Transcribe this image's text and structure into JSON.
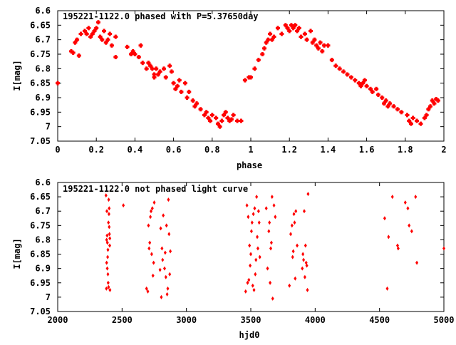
{
  "chart_data": [
    {
      "type": "scatter",
      "title": "195221-1122.0 phased with P=5.37650day",
      "xlabel": "phase",
      "ylabel": "I[mag]",
      "xlim": [
        0,
        2
      ],
      "ylim": [
        7.05,
        6.6
      ],
      "y_inverted": true,
      "xticks": [
        0,
        0.2,
        0.4,
        0.6,
        0.8,
        1,
        1.2,
        1.4,
        1.6,
        1.8,
        2
      ],
      "xtick_labels": [
        "0",
        "0.2",
        "0.4",
        "0.6",
        "0.8",
        "1",
        "1.2",
        "1.4",
        "1.6",
        "1.8",
        "2"
      ],
      "yticks": [
        6.6,
        6.65,
        6.7,
        6.75,
        6.8,
        6.85,
        6.9,
        6.95,
        7,
        7.05
      ],
      "ytick_labels": [
        "6.6",
        "6.65",
        "6.7",
        "6.75",
        "6.8",
        "6.85",
        "6.9",
        "6.95",
        "7",
        "7.05"
      ],
      "grid": false,
      "marker_color": "#ff0000",
      "marker": "cross",
      "series": [
        {
          "x": [
            0.0,
            0.07,
            0.08,
            0.09,
            0.1,
            0.11,
            0.12,
            0.14,
            0.15,
            0.16,
            0.17,
            0.18,
            0.19,
            0.2,
            0.21,
            0.22,
            0.23,
            0.24,
            0.25,
            0.26,
            0.27,
            0.28,
            0.3,
            0.3,
            0.36,
            0.38,
            0.39,
            0.4,
            0.42,
            0.43,
            0.44,
            0.46,
            0.47,
            0.48,
            0.49,
            0.5,
            0.5,
            0.51,
            0.52,
            0.53,
            0.55,
            0.56,
            0.58,
            0.59,
            0.6,
            0.61,
            0.62,
            0.63,
            0.64,
            0.66,
            0.67,
            0.68,
            0.7,
            0.71,
            0.72,
            0.74,
            0.76,
            0.77,
            0.78,
            0.79,
            0.8,
            0.82,
            0.83,
            0.84,
            0.85,
            0.86,
            0.87,
            0.88,
            0.89,
            0.9,
            0.91,
            0.93,
            0.95,
            0.97,
            0.99,
            1.0,
            1.02,
            1.04,
            1.06,
            1.07,
            1.08,
            1.09,
            1.1,
            1.11,
            1.12,
            1.14,
            1.16,
            1.18,
            1.19,
            1.2,
            1.21,
            1.22,
            1.23,
            1.24,
            1.25,
            1.26,
            1.28,
            1.29,
            1.31,
            1.32,
            1.33,
            1.34,
            1.35,
            1.36,
            1.37,
            1.38,
            1.4,
            1.42,
            1.44,
            1.46,
            1.48,
            1.5,
            1.52,
            1.54,
            1.56,
            1.57,
            1.58,
            1.59,
            1.6,
            1.62,
            1.63,
            1.65,
            1.66,
            1.68,
            1.69,
            1.7,
            1.71,
            1.72,
            1.74,
            1.76,
            1.78,
            1.81,
            1.82,
            1.83,
            1.84,
            1.86,
            1.88,
            1.9,
            1.91,
            1.92,
            1.93,
            1.94,
            1.95,
            1.96,
            1.97
          ],
          "y": [
            6.85,
            6.74,
            6.745,
            6.71,
            6.7,
            6.755,
            6.68,
            6.67,
            6.68,
            6.66,
            6.69,
            6.68,
            6.67,
            6.66,
            6.64,
            6.69,
            6.7,
            6.67,
            6.71,
            6.7,
            6.68,
            6.72,
            6.69,
            6.76,
            6.725,
            6.75,
            6.74,
            6.75,
            6.76,
            6.72,
            6.78,
            6.8,
            6.78,
            6.79,
            6.8,
            6.82,
            6.83,
            6.8,
            6.82,
            6.81,
            6.8,
            6.83,
            6.79,
            6.81,
            6.85,
            6.87,
            6.86,
            6.84,
            6.88,
            6.85,
            6.9,
            6.88,
            6.91,
            6.93,
            6.92,
            6.94,
            6.96,
            6.95,
            6.97,
            6.98,
            6.96,
            6.97,
            6.99,
            7.0,
            6.98,
            6.96,
            6.95,
            6.97,
            6.98,
            6.975,
            6.96,
            6.98,
            6.98,
            6.84,
            6.83,
            6.83,
            6.8,
            6.77,
            6.75,
            6.73,
            6.71,
            6.7,
            6.68,
            6.7,
            6.69,
            6.66,
            6.68,
            6.65,
            6.66,
            6.67,
            6.65,
            6.66,
            6.65,
            6.67,
            6.66,
            6.69,
            6.68,
            6.7,
            6.67,
            6.71,
            6.7,
            6.72,
            6.73,
            6.71,
            6.74,
            6.72,
            6.72,
            6.77,
            6.79,
            6.8,
            6.81,
            6.82,
            6.83,
            6.84,
            6.85,
            6.86,
            6.85,
            6.84,
            6.86,
            6.87,
            6.88,
            6.87,
            6.89,
            6.9,
            6.92,
            6.91,
            6.93,
            6.92,
            6.93,
            6.94,
            6.95,
            6.96,
            6.98,
            6.99,
            6.97,
            6.98,
            6.99,
            6.97,
            6.96,
            6.94,
            6.93,
            6.91,
            6.92,
            6.905,
            6.91
          ],
          "point_labels": []
        }
      ]
    },
    {
      "type": "scatter",
      "title": "195221-1122.0 not phased light curve",
      "xlabel": "hjd0",
      "ylabel": "I[mag]",
      "xlim": [
        2000,
        5000
      ],
      "ylim": [
        7.05,
        6.6
      ],
      "y_inverted": true,
      "xticks": [
        2000,
        2500,
        3000,
        3500,
        4000,
        4500,
        5000
      ],
      "xtick_labels": [
        "2000",
        "2500",
        "3000",
        "3500",
        "4000",
        "4500",
        "5000"
      ],
      "yticks": [
        6.6,
        6.65,
        6.7,
        6.75,
        6.8,
        6.85,
        6.9,
        6.95,
        7,
        7.05
      ],
      "ytick_labels": [
        "6.6",
        "6.65",
        "6.7",
        "6.75",
        "6.8",
        "6.85",
        "6.9",
        "6.95",
        "7",
        "7.05"
      ],
      "grid": false,
      "marker_color": "#ff0000",
      "marker": "diamond",
      "series": [
        {
          "x": [
            2375,
            2378,
            2380,
            2382,
            2384,
            2386,
            2388,
            2390,
            2392,
            2394,
            2396,
            2398,
            2400,
            2402,
            2404,
            2406,
            2380,
            2385,
            2390,
            2395,
            2400,
            2405,
            2510,
            2690,
            2700,
            2705,
            2710,
            2715,
            2720,
            2725,
            2730,
            2735,
            2740,
            2745,
            2750,
            2795,
            2800,
            2805,
            2810,
            2815,
            2820,
            2830,
            2835,
            2840,
            2845,
            2850,
            2855,
            2860,
            2865,
            2870,
            2875,
            3460,
            3470,
            3475,
            3480,
            3485,
            3490,
            3495,
            3500,
            3505,
            3510,
            3515,
            3520,
            3525,
            3530,
            3535,
            3540,
            3545,
            3550,
            3555,
            3560,
            3565,
            3570,
            3620,
            3630,
            3640,
            3645,
            3650,
            3655,
            3660,
            3665,
            3670,
            3680,
            3690,
            3800,
            3810,
            3820,
            3825,
            3830,
            3835,
            3840,
            3845,
            3850,
            3860,
            3900,
            3905,
            3910,
            3915,
            3920,
            3925,
            3930,
            3935,
            3940,
            3945,
            4540,
            4560,
            4570,
            4600,
            4640,
            4645,
            4700,
            4720,
            4730,
            4750,
            4780,
            4790,
            5000
          ],
          "y": [
            6.645,
            6.97,
            6.8,
            6.7,
            6.785,
            6.81,
            6.86,
            6.92,
            6.95,
            6.74,
            6.66,
            6.71,
            6.69,
            6.78,
            6.82,
            6.975,
            6.88,
            6.9,
            6.835,
            6.965,
            6.755,
            6.795,
            6.68,
            6.97,
            6.98,
            6.75,
            6.83,
            6.81,
            6.72,
            6.7,
            6.85,
            6.69,
            6.925,
            6.88,
            6.67,
            6.905,
            6.76,
            7.0,
            6.83,
            6.87,
            6.715,
            6.9,
            6.845,
            6.93,
            6.75,
            6.99,
            6.97,
            6.66,
            6.78,
            6.92,
            6.84,
            6.98,
            6.68,
            6.95,
            6.72,
            6.94,
            6.82,
            6.89,
            6.85,
            6.77,
            6.74,
            6.96,
            6.71,
            6.975,
            6.69,
            6.92,
            6.87,
            6.65,
            6.79,
            6.83,
            6.7,
            6.74,
            6.86,
            6.69,
            6.9,
            6.77,
            6.74,
            6.95,
            6.83,
            6.81,
            6.65,
            7.005,
            6.68,
            6.72,
            6.96,
            6.78,
            6.75,
            6.86,
            6.84,
            6.71,
            6.74,
            6.935,
            6.7,
            6.82,
            6.9,
            6.85,
            6.87,
            6.7,
            6.93,
            6.82,
            6.88,
            6.89,
            6.975,
            6.64,
            6.725,
            6.97,
            6.79,
            6.65,
            6.82,
            6.83,
            6.67,
            6.69,
            6.75,
            6.77,
            6.65,
            6.88,
            6.83
          ]
        }
      ]
    }
  ]
}
